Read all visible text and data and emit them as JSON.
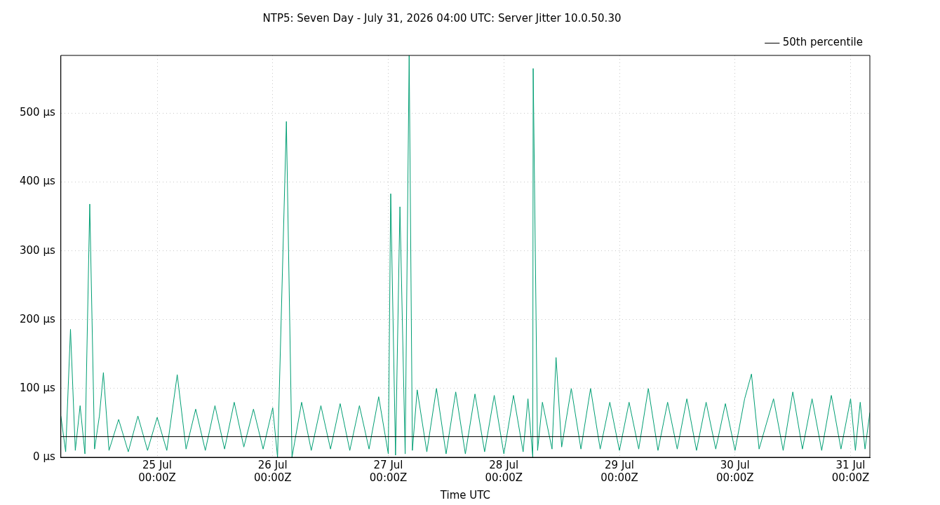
{
  "chart_data": {
    "type": "line",
    "title": "NTP5: Seven Day - July 31, 2026 04:00 UTC: Server Jitter 10.0.50.30",
    "xlabel": "Time UTC",
    "xlim": [
      "2026-07-24T04:00",
      "2026-07-31T04:00"
    ],
    "xticks": [
      {
        "value": "2026-07-25T00:00",
        "label": "25 Jul\n00:00Z"
      },
      {
        "value": "2026-07-26T00:00",
        "label": "26 Jul\n00:00Z"
      },
      {
        "value": "2026-07-27T00:00",
        "label": "27 Jul\n00:00Z"
      },
      {
        "value": "2026-07-28T00:00",
        "label": "28 Jul\n00:00Z"
      },
      {
        "value": "2026-07-29T00:00",
        "label": "29 Jul\n00:00Z"
      },
      {
        "value": "2026-07-30T00:00",
        "label": "30 Jul\n00:00Z"
      },
      {
        "value": "2026-07-31T00:00",
        "label": "31 Jul\n00:00Z"
      }
    ],
    "ylim": [
      0,
      584
    ],
    "yticks": [
      {
        "value": 0,
        "label": "0 µs"
      },
      {
        "value": 100,
        "label": "100 µs"
      },
      {
        "value": 200,
        "label": "200 µs"
      },
      {
        "value": 300,
        "label": "300 µs"
      },
      {
        "value": 400,
        "label": "400 µs"
      },
      {
        "value": 500,
        "label": "500 µs"
      }
    ],
    "grid": true,
    "legend": "top right",
    "marker": "none",
    "line_style": "solid",
    "series": [
      {
        "color": "#009e73",
        "x": [
          "2026-07-24T04:00",
          "2026-07-24T05:00",
          "2026-07-24T06:00",
          "2026-07-24T07:00",
          "2026-07-24T08:00",
          "2026-07-24T09:00",
          "2026-07-24T10:00",
          "2026-07-24T11:00",
          "2026-07-24T12:00",
          "2026-07-24T12:50",
          "2026-07-24T14:00",
          "2026-07-24T16:00",
          "2026-07-24T18:00",
          "2026-07-24T20:00",
          "2026-07-24T22:00",
          "2026-07-25T00:00",
          "2026-07-25T02:00",
          "2026-07-25T04:10",
          "2026-07-25T06:00",
          "2026-07-25T08:00",
          "2026-07-25T10:00",
          "2026-07-25T12:00",
          "2026-07-25T14:00",
          "2026-07-25T16:00",
          "2026-07-25T18:00",
          "2026-07-25T20:00",
          "2026-07-25T22:00",
          "2026-07-26T00:00",
          "2026-07-26T01:00",
          "2026-07-26T02:50",
          "2026-07-26T04:00",
          "2026-07-26T06:00",
          "2026-07-26T08:00",
          "2026-07-26T10:00",
          "2026-07-26T12:00",
          "2026-07-26T14:00",
          "2026-07-26T16:00",
          "2026-07-26T18:00",
          "2026-07-26T20:00",
          "2026-07-26T22:00",
          "2026-07-27T00:00",
          "2026-07-27T00:30",
          "2026-07-27T01:30",
          "2026-07-27T02:25",
          "2026-07-27T03:30",
          "2026-07-27T04:20",
          "2026-07-27T05:00",
          "2026-07-27T06:00",
          "2026-07-27T08:00",
          "2026-07-27T10:00",
          "2026-07-27T12:00",
          "2026-07-27T14:00",
          "2026-07-27T16:00",
          "2026-07-27T18:00",
          "2026-07-27T20:00",
          "2026-07-27T22:00",
          "2026-07-28T00:00",
          "2026-07-28T02:00",
          "2026-07-28T04:00",
          "2026-07-28T05:00",
          "2026-07-28T06:00",
          "2026-07-28T06:05",
          "2026-07-28T07:00",
          "2026-07-28T08:00",
          "2026-07-28T10:00",
          "2026-07-28T10:50",
          "2026-07-28T12:00",
          "2026-07-28T14:00",
          "2026-07-28T16:00",
          "2026-07-28T18:00",
          "2026-07-28T20:00",
          "2026-07-28T22:00",
          "2026-07-29T00:00",
          "2026-07-29T02:00",
          "2026-07-29T04:00",
          "2026-07-29T06:00",
          "2026-07-29T08:00",
          "2026-07-29T10:00",
          "2026-07-29T12:00",
          "2026-07-29T14:00",
          "2026-07-29T16:00",
          "2026-07-29T18:00",
          "2026-07-29T20:00",
          "2026-07-29T22:00",
          "2026-07-30T00:00",
          "2026-07-30T02:00",
          "2026-07-30T03:25",
          "2026-07-30T05:00",
          "2026-07-30T08:00",
          "2026-07-30T10:00",
          "2026-07-30T12:00",
          "2026-07-30T14:00",
          "2026-07-30T16:00",
          "2026-07-30T18:00",
          "2026-07-30T20:00",
          "2026-07-30T22:00",
          "2026-07-31T00:00",
          "2026-07-31T01:00",
          "2026-07-31T02:00",
          "2026-07-31T03:00",
          "2026-07-31T04:00"
        ],
        "values": [
          60,
          8,
          186,
          10,
          75,
          5,
          368,
          12,
          60,
          123,
          10,
          55,
          8,
          60,
          10,
          58,
          10,
          120,
          12,
          70,
          10,
          75,
          12,
          80,
          15,
          70,
          12,
          72,
          0,
          488,
          0,
          80,
          10,
          75,
          12,
          78,
          10,
          75,
          12,
          88,
          5,
          383,
          3,
          364,
          5,
          584,
          10,
          98,
          8,
          100,
          5,
          95,
          5,
          92,
          8,
          90,
          5,
          90,
          8,
          85,
          0,
          565,
          10,
          80,
          12,
          145,
          15,
          100,
          12,
          100,
          12,
          80,
          10,
          80,
          12,
          100,
          10,
          80,
          12,
          85,
          10,
          80,
          12,
          78,
          10,
          85,
          121,
          12,
          85,
          10,
          95,
          12,
          85,
          10,
          90,
          12,
          85,
          10,
          80,
          12,
          65
        ]
      },
      {
        "name": "50th percentile",
        "color": "#000000",
        "x": [
          "2026-07-24T04:00",
          "2026-07-31T04:00"
        ],
        "values": [
          30,
          30
        ]
      }
    ]
  }
}
